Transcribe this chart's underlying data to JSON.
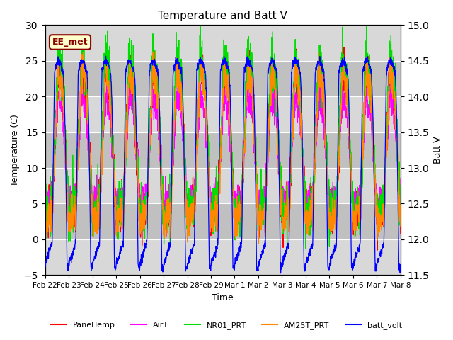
{
  "title": "Temperature and Batt V",
  "xlabel": "Time",
  "ylabel_left": "Temperature (C)",
  "ylabel_right": "Batt V",
  "annotation_text": "EE_met",
  "x_tick_labels": [
    "Feb 22",
    "Feb 23",
    "Feb 24",
    "Feb 25",
    "Feb 26",
    "Feb 27",
    "Feb 28",
    "Feb 29",
    "Mar 1",
    "Mar 2",
    "Mar 3",
    "Mar 4",
    "Mar 5",
    "Mar 6",
    "Mar 7",
    "Mar 8"
  ],
  "ylim_left": [
    -5,
    30
  ],
  "ylim_right": [
    11.5,
    15.0
  ],
  "yticks_left": [
    -5,
    0,
    5,
    10,
    15,
    20,
    25,
    30
  ],
  "yticks_right": [
    11.5,
    12.0,
    12.5,
    13.0,
    13.5,
    14.0,
    14.5,
    15.0
  ],
  "colors": {
    "PanelTemp": "#ff0000",
    "AirT": "#ff00ff",
    "NR01_PRT": "#00dd00",
    "AM25T_PRT": "#ff8800",
    "batt_volt": "#0000ff"
  },
  "legend_labels": [
    "PanelTemp",
    "AirT",
    "NR01_PRT",
    "AM25T_PRT",
    "batt_volt"
  ],
  "background_color": "#ffffff",
  "plot_bg_light": "#d8d8d8",
  "plot_bg_dark": "#c0c0c0",
  "grid_color": "#ffffff",
  "n_days": 15,
  "pts_per_day": 144,
  "annotation_facecolor": "#ffffcc",
  "annotation_edgecolor": "#8b0000",
  "annotation_textcolor": "#8b0000"
}
